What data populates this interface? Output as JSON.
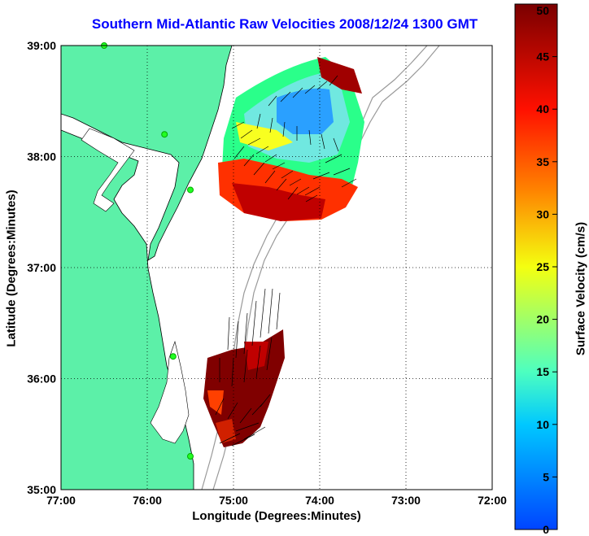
{
  "title": "Southern Mid-Atlantic Raw Velocities 2008/12/24 1300 GMT",
  "xlabel": "Longitude (Degrees:Minutes)",
  "ylabel": "Latitude (Degrees:Minutes)",
  "colorbar": {
    "label": "Surface Velocity (cm/s)",
    "min": 0,
    "max": 50,
    "ticks": [
      "0",
      "5",
      "10",
      "15",
      "20",
      "25",
      "30",
      "35",
      "40",
      "45",
      "50"
    ]
  },
  "map": {
    "xticks": [
      "77:00",
      "76:00",
      "75:00",
      "74:00",
      "73:00",
      "72:00"
    ],
    "yticks": [
      "39:00",
      "38:00",
      "37:00",
      "36:00",
      "35:00"
    ],
    "lon_range": [
      -77,
      -72
    ],
    "lat_range": [
      35,
      39
    ],
    "land_color": "#5cf0a8",
    "grid": "dotted",
    "stations": [
      [
        -76.5,
        39
      ],
      [
        -75.8,
        38.2
      ],
      [
        -75.5,
        37.7
      ],
      [
        -75.7,
        36.2
      ],
      [
        -75.5,
        35.3
      ]
    ]
  }
}
